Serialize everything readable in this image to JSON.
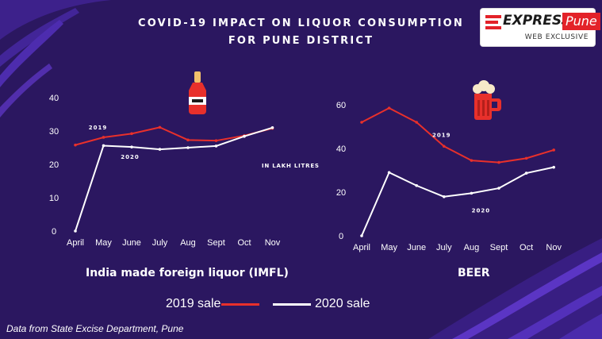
{
  "title_line1": "COVID-19 IMPACT ON LIQUOR CONSUMPTION",
  "title_line2": "FOR PUNE DISTRICT",
  "logo": {
    "express": "EXPRESS",
    "pune": "Pune",
    "tagline": "WEB EXCLUSIVE"
  },
  "unit_label": "IN LAKH LITRES",
  "legend": {
    "sale_2019": "2019 sale",
    "sale_2020": "2020 sale"
  },
  "source": "Data from State Excise Department, Pune",
  "colors": {
    "background": "#2b1760",
    "series_2019": "#e8302b",
    "series_2020": "#ffffff",
    "text": "#ffffff"
  },
  "icons": [
    "bottle-icon",
    "beer-mug-icon",
    "express-logo-icon"
  ],
  "chart_data": [
    {
      "type": "line",
      "title": "India made foreign liquor (IMFL)",
      "categories": [
        "April",
        "May",
        "June",
        "July",
        "Aug",
        "Sept",
        "Oct",
        "Nov"
      ],
      "ylim": [
        0,
        40
      ],
      "yticks": [
        0,
        10,
        20,
        30,
        40
      ],
      "grid": false,
      "series": [
        {
          "name": "2019",
          "color": "#e8302b",
          "values": [
            25.8,
            28.1,
            29.2,
            31.1,
            27.3,
            27.1,
            28.6,
            30.8
          ]
        },
        {
          "name": "2020",
          "color": "#ffffff",
          "values": [
            0,
            25.6,
            25.2,
            24.5,
            25.0,
            25.5,
            28.4,
            31.0
          ]
        }
      ]
    },
    {
      "type": "line",
      "title": "BEER",
      "categories": [
        "April",
        "May",
        "June",
        "July",
        "Aug",
        "Sept",
        "Oct",
        "Nov"
      ],
      "ylim": [
        0,
        60
      ],
      "yticks": [
        0,
        20,
        40,
        60
      ],
      "grid": false,
      "series": [
        {
          "name": "2019",
          "color": "#e8302b",
          "values": [
            52.0,
            58.5,
            52.0,
            41.0,
            34.5,
            33.6,
            35.5,
            39.3
          ]
        },
        {
          "name": "2020",
          "color": "#ffffff",
          "values": [
            0,
            29.0,
            23.0,
            17.9,
            19.5,
            21.8,
            28.7,
            31.4
          ]
        }
      ]
    }
  ]
}
